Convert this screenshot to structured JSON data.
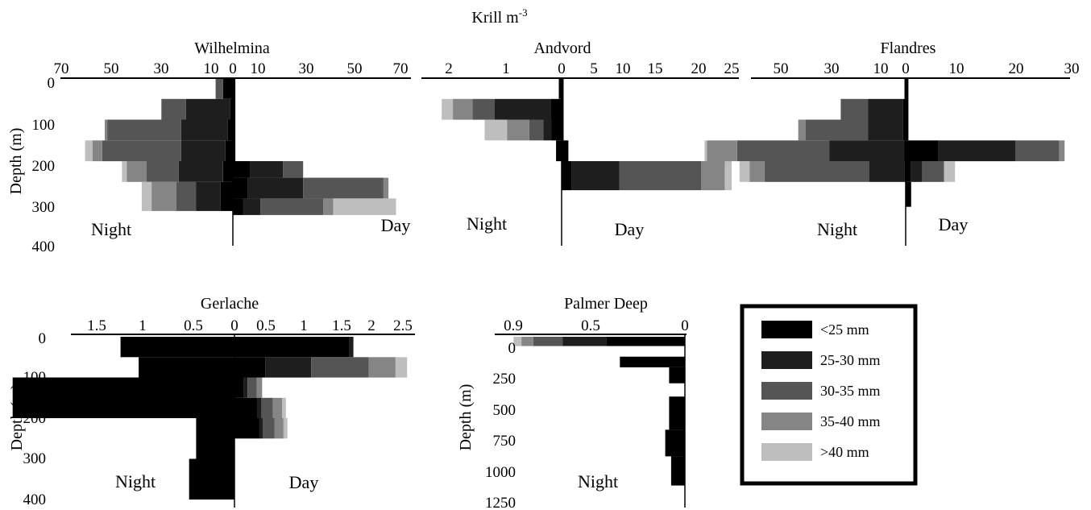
{
  "figure": {
    "title": "Krill m",
    "title_sup": "-3",
    "depth_label": "Depth (m)",
    "night_label": "Night",
    "day_label": "Day"
  },
  "legend": {
    "items": [
      {
        "label": "<25 mm",
        "color": "#000000"
      },
      {
        "label": "25-30 mm",
        "color": "#1e1e1e"
      },
      {
        "label": "30-35 mm",
        "color": "#555555"
      },
      {
        "label": "35-40 mm",
        "color": "#858585"
      },
      {
        "label": ">40 mm",
        "color": "#bebebe"
      }
    ]
  },
  "chart_data": [
    {
      "type": "bar",
      "orientation": "horizontal-stacked-butterfly",
      "title": "Wilhelmina",
      "ylabel": "Depth (m)",
      "y_ticks": [
        "0",
        "100",
        "200",
        "300",
        "400"
      ],
      "ylim": [
        400,
        0
      ],
      "x_ticks_left": [
        "70",
        "50",
        "30",
        "10",
        "0"
      ],
      "x_ticks_right": [
        "10",
        "30",
        "50",
        "70"
      ],
      "xlim_left": [
        0,
        70
      ],
      "xlim_right": [
        0,
        70
      ],
      "series_order": [
        "<25 mm",
        "25-30 mm",
        "30-35 mm",
        "35-40 mm",
        ">40 mm"
      ],
      "night": [
        {
          "depth": [
            0,
            50
          ],
          "values": [
            4,
            0,
            3,
            0,
            0
          ]
        },
        {
          "depth": [
            50,
            100
          ],
          "values": [
            1,
            18,
            10,
            0,
            0
          ]
        },
        {
          "depth": [
            100,
            150
          ],
          "values": [
            2,
            19,
            30,
            1,
            0
          ]
        },
        {
          "depth": [
            150,
            200
          ],
          "values": [
            3,
            18,
            32,
            4,
            3
          ]
        },
        {
          "depth": [
            200,
            250
          ],
          "values": [
            4,
            18,
            13,
            8,
            2
          ]
        },
        {
          "depth": [
            250,
            320
          ],
          "values": [
            5,
            10,
            8,
            10,
            4
          ]
        }
      ],
      "day": [
        {
          "depth": [
            0,
            200
          ],
          "values": [
            1,
            0,
            0,
            0,
            0
          ]
        },
        {
          "depth": [
            200,
            240
          ],
          "values": [
            7,
            13,
            8,
            0,
            0
          ]
        },
        {
          "depth": [
            240,
            290
          ],
          "values": [
            6,
            22,
            32,
            2,
            0
          ]
        },
        {
          "depth": [
            290,
            330
          ],
          "values": [
            4,
            7,
            25,
            4,
            25
          ]
        }
      ]
    },
    {
      "type": "bar",
      "orientation": "horizontal-stacked-butterfly",
      "title": "Andvord",
      "y_ticks": [],
      "ylim": [
        400,
        0
      ],
      "x_ticks_left": [
        "2",
        "1",
        "0"
      ],
      "x_ticks_right": [
        "5",
        "10",
        "15",
        "20",
        "25"
      ],
      "xlim_left": [
        0,
        2.5
      ],
      "xlim_right": [
        0,
        25
      ],
      "series_order": [
        "<25 mm",
        "25-30 mm",
        "30-35 mm",
        "35-40 mm",
        ">40 mm"
      ],
      "night": [
        {
          "depth": [
            0,
            50
          ],
          "values": [
            0.05,
            0,
            0,
            0,
            0
          ]
        },
        {
          "depth": [
            50,
            100
          ],
          "values": [
            0.2,
            1,
            0.4,
            0.35,
            0.2
          ]
        },
        {
          "depth": [
            100,
            150
          ],
          "values": [
            0.18,
            0.15,
            0.25,
            0.4,
            0.4
          ]
        },
        {
          "depth": [
            150,
            200
          ],
          "values": [
            0.1,
            0,
            0,
            0,
            0
          ]
        }
      ],
      "day": [
        {
          "depth": [
            0,
            150
          ],
          "values": [
            0.3,
            0,
            0,
            0,
            0
          ]
        },
        {
          "depth": [
            150,
            200
          ],
          "values": [
            1,
            0,
            0,
            0,
            0
          ]
        },
        {
          "depth": [
            200,
            270
          ],
          "values": [
            1.5,
            7,
            12,
            3.5,
            1
          ]
        }
      ]
    },
    {
      "type": "bar",
      "orientation": "horizontal-stacked-butterfly",
      "title": "Flandres",
      "y_ticks": [],
      "ylim": [
        400,
        0
      ],
      "x_ticks_left": [
        "50",
        "30",
        "10",
        "0"
      ],
      "x_ticks_right": [
        "10",
        "20",
        "30"
      ],
      "xlim_left": [
        0,
        60
      ],
      "xlim_right": [
        0,
        30
      ],
      "series_order": [
        "<25 mm",
        "25-30 mm",
        "30-35 mm",
        "35-40 mm",
        ">40 mm"
      ],
      "night": [
        {
          "depth": [
            0,
            50
          ],
          "values": [
            0.5,
            0,
            0,
            0,
            0
          ]
        },
        {
          "depth": [
            50,
            100
          ],
          "values": [
            1,
            14,
            11,
            0,
            0
          ]
        },
        {
          "depth": [
            100,
            150
          ],
          "values": [
            1,
            14,
            25,
            3,
            0
          ]
        },
        {
          "depth": [
            150,
            200
          ],
          "values": [
            0.5,
            30,
            37,
            12,
            1
          ]
        },
        {
          "depth": [
            200,
            250
          ],
          "values": [
            0.5,
            14,
            42,
            6,
            4
          ]
        }
      ],
      "day": [
        {
          "depth": [
            0,
            150
          ],
          "values": [
            0.5,
            0,
            0,
            0,
            0
          ]
        },
        {
          "depth": [
            150,
            200
          ],
          "values": [
            6,
            14,
            8,
            1,
            0
          ]
        },
        {
          "depth": [
            200,
            250
          ],
          "values": [
            1,
            2,
            4,
            0,
            2
          ]
        },
        {
          "depth": [
            250,
            310
          ],
          "values": [
            1,
            0,
            0,
            0,
            0
          ]
        }
      ]
    },
    {
      "type": "bar",
      "orientation": "horizontal-stacked-butterfly",
      "title": "Gerlache",
      "ylabel": "Depth (m)",
      "y_ticks": [
        "0",
        "100",
        "200",
        "300",
        "400"
      ],
      "ylim": [
        400,
        0
      ],
      "x_ticks_left": [
        "1.5",
        "1",
        "0.5",
        "0"
      ],
      "x_ticks_right": [
        "0.5",
        "1",
        "1.5",
        "2",
        "2.5"
      ],
      "xlim_left": [
        0,
        1.75
      ],
      "xlim_right": [
        0,
        2.5
      ],
      "series_order": [
        "<25 mm",
        "25-30 mm",
        "30-35 mm",
        "35-40 mm",
        ">40 mm"
      ],
      "night": [
        {
          "depth": [
            0,
            50
          ],
          "values": [
            1.13,
            0,
            0,
            0,
            0
          ]
        },
        {
          "depth": [
            50,
            100
          ],
          "values": [
            0.95,
            0,
            0,
            0,
            0
          ]
        },
        {
          "depth": [
            100,
            200
          ],
          "values": [
            2.2,
            0,
            0,
            0,
            0
          ]
        },
        {
          "depth": [
            200,
            300
          ],
          "values": [
            0.38,
            0,
            0,
            0,
            0
          ]
        },
        {
          "depth": [
            300,
            400
          ],
          "values": [
            0.45,
            0,
            0,
            0,
            0
          ]
        }
      ],
      "day": [
        {
          "depth": [
            0,
            50
          ],
          "values": [
            1.5,
            0.05,
            0,
            0,
            0
          ]
        },
        {
          "depth": [
            50,
            100
          ],
          "values": [
            0.4,
            0.6,
            0.75,
            0.35,
            0.15
          ]
        },
        {
          "depth": [
            100,
            150
          ],
          "values": [
            0.12,
            0.05,
            0.12,
            0.07,
            0
          ]
        },
        {
          "depth": [
            150,
            200
          ],
          "values": [
            0.3,
            0.05,
            0.15,
            0.12,
            0.05
          ]
        },
        {
          "depth": [
            200,
            250
          ],
          "values": [
            0.32,
            0.05,
            0.15,
            0.12,
            0.05
          ]
        }
      ]
    },
    {
      "type": "bar",
      "orientation": "horizontal-stacked",
      "title": "Palmer Deep",
      "ylabel": "Depth (m)",
      "y_ticks": [
        "0",
        "250",
        "500",
        "750",
        "1000",
        "1250"
      ],
      "ylim": [
        1250,
        0
      ],
      "x_ticks_left": [
        "0.9",
        "0.5",
        "0"
      ],
      "xlim_left": [
        0,
        0.9
      ],
      "series_order": [
        "<25 mm",
        "25-30 mm",
        "30-35 mm",
        "35-40 mm",
        ">40 mm"
      ],
      "night": [
        {
          "depth": [
            0,
            70
          ],
          "values": [
            0.4,
            0.22,
            0.15,
            0.06,
            0.04
          ]
        },
        {
          "depth": [
            150,
            230
          ],
          "values": [
            0.33,
            0,
            0,
            0,
            0
          ]
        },
        {
          "depth": [
            230,
            350
          ],
          "values": [
            0.08,
            0,
            0,
            0,
            0
          ]
        },
        {
          "depth": [
            450,
            700
          ],
          "values": [
            0.08,
            0,
            0,
            0,
            0
          ]
        },
        {
          "depth": [
            700,
            900
          ],
          "values": [
            0.1,
            0,
            0,
            0,
            0
          ]
        },
        {
          "depth": [
            900,
            1120
          ],
          "values": [
            0.07,
            0,
            0,
            0,
            0
          ]
        }
      ]
    }
  ]
}
